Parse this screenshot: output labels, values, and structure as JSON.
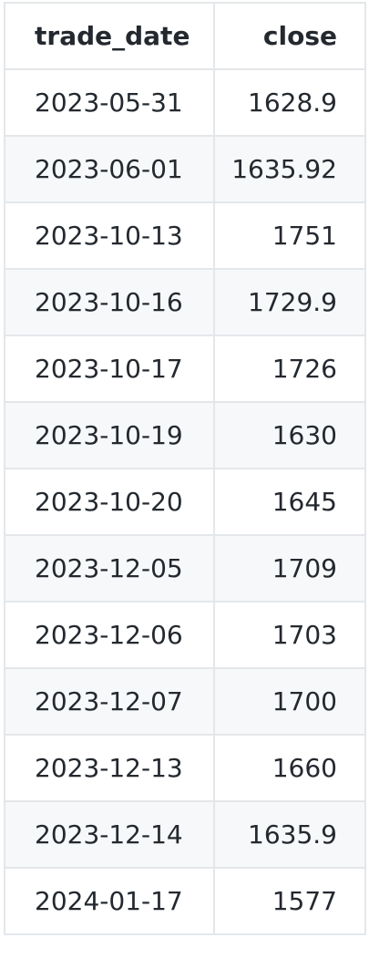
{
  "table": {
    "headers": {
      "trade_date": "trade_date",
      "close": "close"
    },
    "rows": [
      {
        "trade_date": "2023-05-31",
        "close": "1628.9"
      },
      {
        "trade_date": "2023-06-01",
        "close": "1635.92"
      },
      {
        "trade_date": "2023-10-13",
        "close": "1751"
      },
      {
        "trade_date": "2023-10-16",
        "close": "1729.9"
      },
      {
        "trade_date": "2023-10-17",
        "close": "1726"
      },
      {
        "trade_date": "2023-10-19",
        "close": "1630"
      },
      {
        "trade_date": "2023-10-20",
        "close": "1645"
      },
      {
        "trade_date": "2023-12-05",
        "close": "1709"
      },
      {
        "trade_date": "2023-12-06",
        "close": "1703"
      },
      {
        "trade_date": "2023-12-07",
        "close": "1700"
      },
      {
        "trade_date": "2023-12-13",
        "close": "1660"
      },
      {
        "trade_date": "2023-12-14",
        "close": "1635.9"
      },
      {
        "trade_date": "2024-01-17",
        "close": "1577"
      }
    ]
  }
}
